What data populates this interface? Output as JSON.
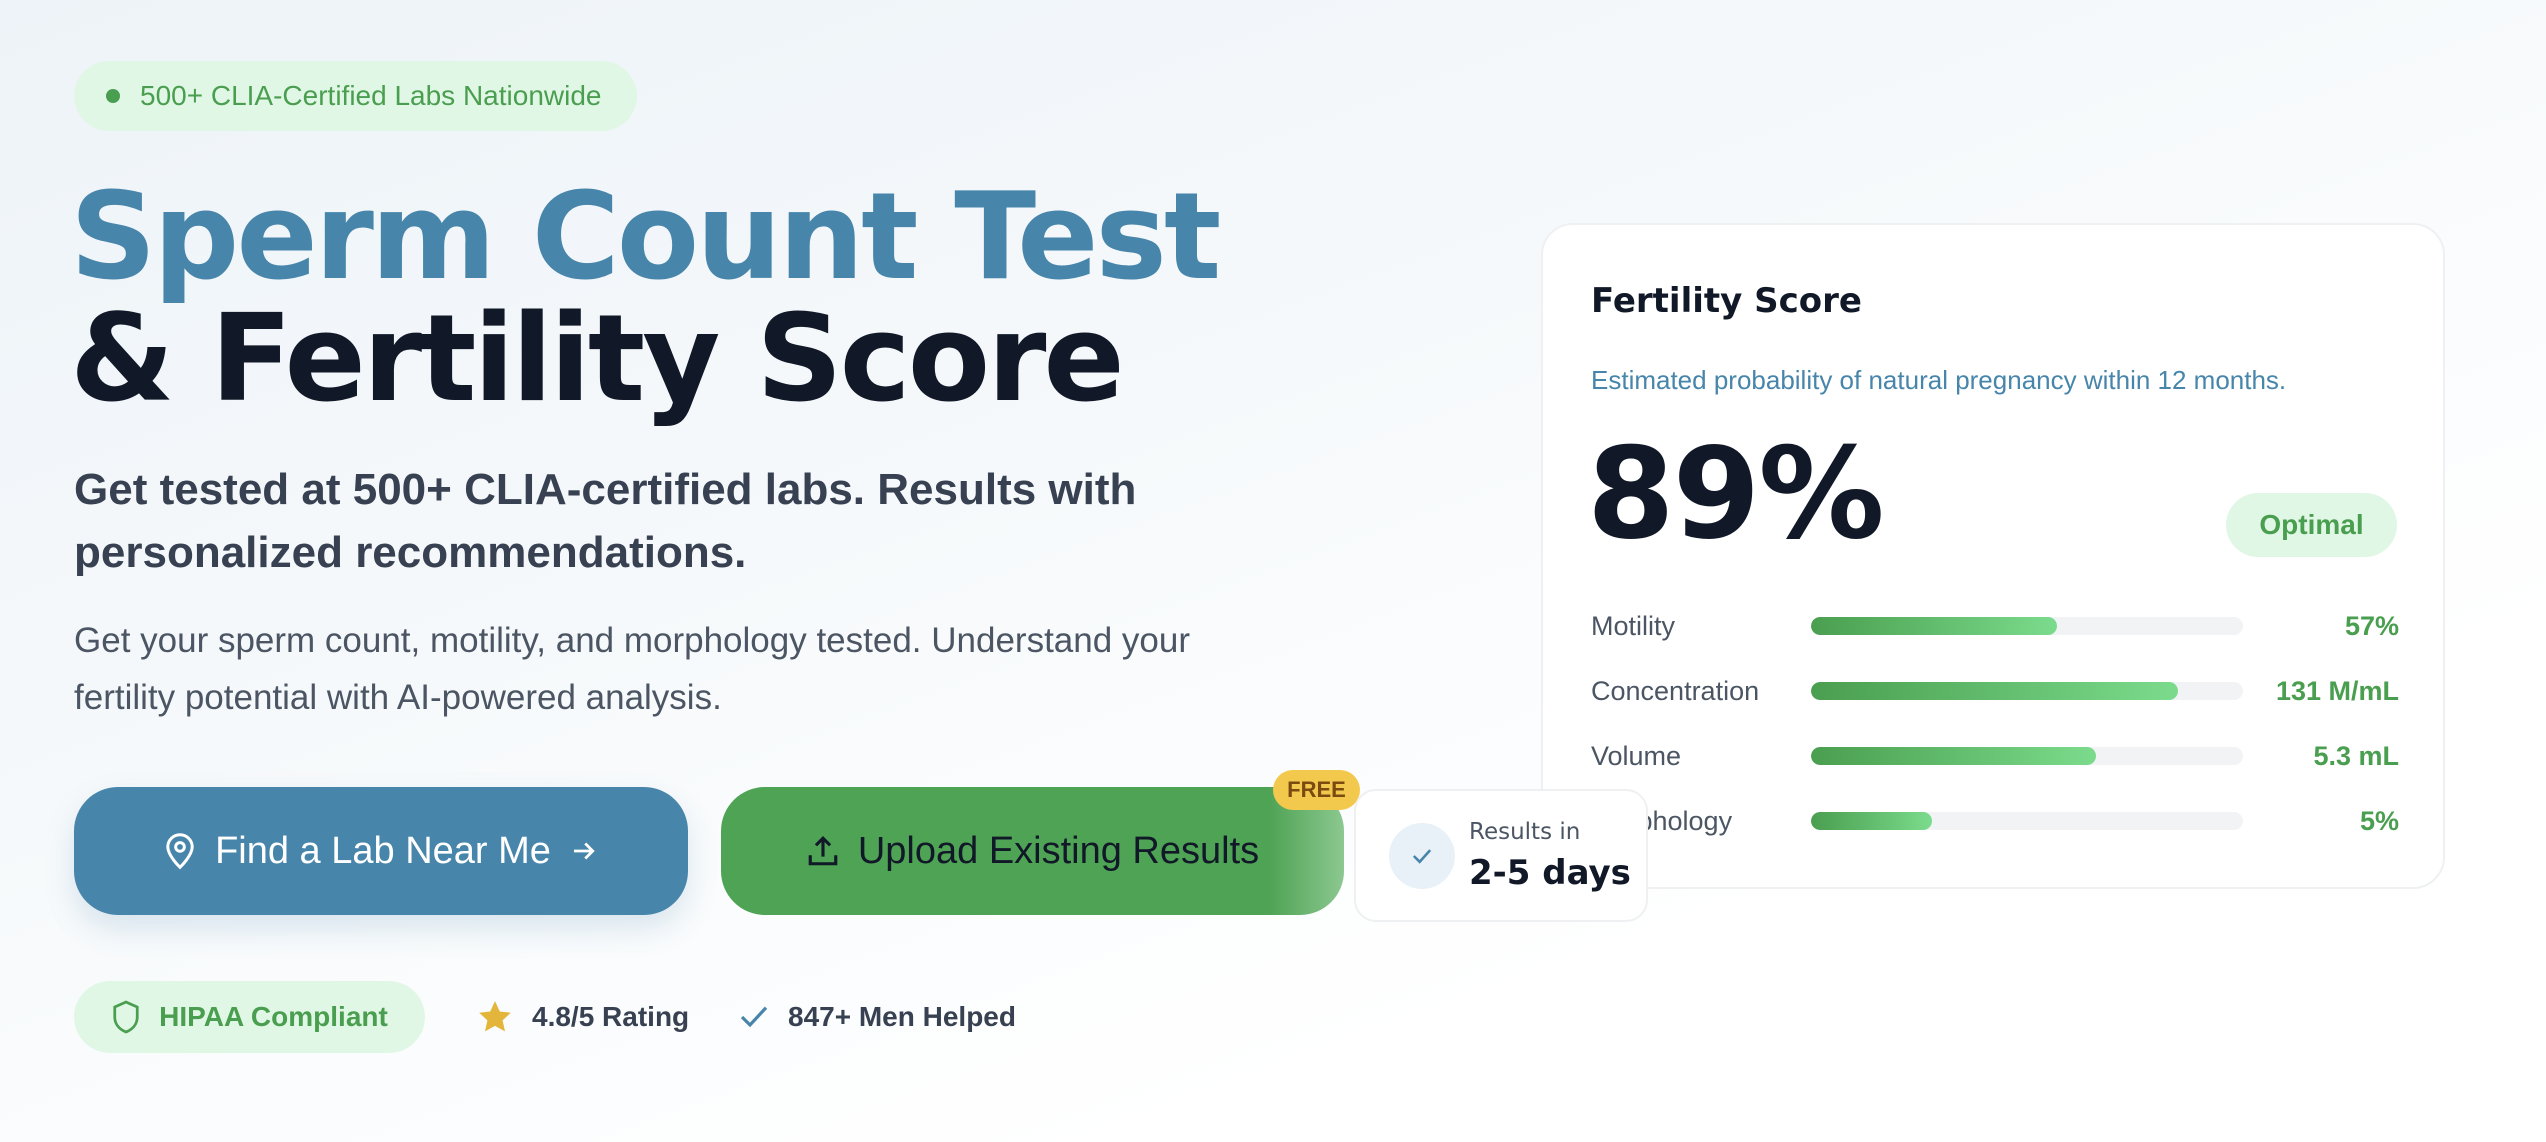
{
  "badge": {
    "text": "500+ CLIA-Certified Labs Nationwide",
    "icon": "dot-icon"
  },
  "hero": {
    "title_line1": "Sperm Count Test",
    "title_line2": "& Fertility Score",
    "subtitle": "Get tested at 500+ CLIA-certified labs. Results with personalized recommendations.",
    "description": "Get your sperm count, motility, and morphology tested. Understand your fertility potential with AI-powered analysis."
  },
  "actions": {
    "find_lab": {
      "label": "Find a Lab Near Me",
      "icon": "map-pin-icon",
      "trailing_icon": "arrow-right-icon"
    },
    "upload": {
      "label": "Upload Existing Results",
      "icon": "upload-icon",
      "badge": "FREE"
    },
    "results_time": {
      "label": "Results in",
      "value": "2-5 days",
      "icon": "check-icon"
    }
  },
  "trust": [
    {
      "label": "HIPAA Compliant",
      "icon": "shield-icon"
    },
    {
      "label": "4.8/5 Rating",
      "icon": "star-icon"
    },
    {
      "label": "847+ Men Helped",
      "icon": "check-icon"
    }
  ],
  "score_card": {
    "title": "Fertility Score",
    "description": "Estimated probability of natural pregnancy within 12 months.",
    "score": "89%",
    "status": "Optimal",
    "metrics": [
      {
        "label": "Motility",
        "value": "57%",
        "fill": 0.57
      },
      {
        "label": "Concentration",
        "value": "131 M/mL",
        "fill": 0.85
      },
      {
        "label": "Volume",
        "value": "5.3 mL",
        "fill": 0.66
      },
      {
        "label": "Morphology",
        "value": "5%",
        "fill": 0.28
      }
    ]
  },
  "colors": {
    "primary": "#4785aa",
    "green": "#4a9e4f",
    "dark": "#111827",
    "badge_bg": "#e1f7e6",
    "free": "#f2c94c"
  }
}
